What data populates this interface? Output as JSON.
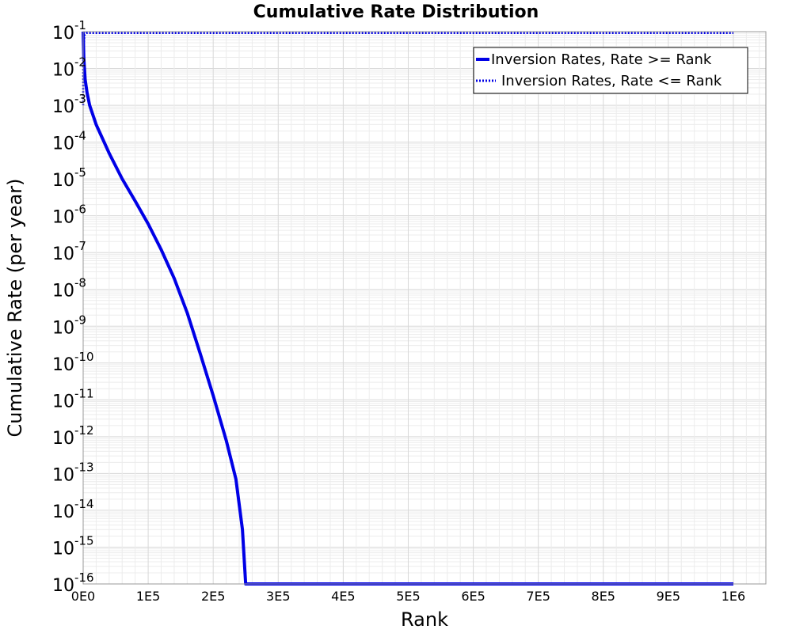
{
  "chart_data": {
    "type": "line",
    "title": "Cumulative Rate Distribution",
    "xlabel": "Rank",
    "ylabel": "Cumulative Rate (per year)",
    "x_scale": "linear",
    "y_scale": "log",
    "xlim": [
      0,
      1050000
    ],
    "ylim": [
      1e-16,
      0.1
    ],
    "grid": true,
    "legend_position": "top-right",
    "x_ticks": [
      {
        "value": 0,
        "label": "0E0"
      },
      {
        "value": 100000,
        "label": "1E5"
      },
      {
        "value": 200000,
        "label": "2E5"
      },
      {
        "value": 300000,
        "label": "3E5"
      },
      {
        "value": 400000,
        "label": "4E5"
      },
      {
        "value": 500000,
        "label": "5E5"
      },
      {
        "value": 600000,
        "label": "6E5"
      },
      {
        "value": 700000,
        "label": "7E5"
      },
      {
        "value": 800000,
        "label": "8E5"
      },
      {
        "value": 900000,
        "label": "9E5"
      },
      {
        "value": 1000000,
        "label": "1E6"
      }
    ],
    "y_ticks": [
      {
        "value": 0.1,
        "base": "10",
        "exp": "-1"
      },
      {
        "value": 0.01,
        "base": "10",
        "exp": "-2"
      },
      {
        "value": 0.001,
        "base": "10",
        "exp": "-3"
      },
      {
        "value": 0.0001,
        "base": "10",
        "exp": "-4"
      },
      {
        "value": 1e-05,
        "base": "10",
        "exp": "-5"
      },
      {
        "value": 1e-06,
        "base": "10",
        "exp": "-6"
      },
      {
        "value": 1e-07,
        "base": "10",
        "exp": "-7"
      },
      {
        "value": 1e-08,
        "base": "10",
        "exp": "-8"
      },
      {
        "value": 1e-09,
        "base": "10",
        "exp": "-9"
      },
      {
        "value": 1e-10,
        "base": "10",
        "exp": "-10"
      },
      {
        "value": 1e-11,
        "base": "10",
        "exp": "-11"
      },
      {
        "value": 1e-12,
        "base": "10",
        "exp": "-12"
      },
      {
        "value": 1e-13,
        "base": "10",
        "exp": "-13"
      },
      {
        "value": 1e-14,
        "base": "10",
        "exp": "-14"
      },
      {
        "value": 1e-15,
        "base": "10",
        "exp": "-15"
      },
      {
        "value": 1e-16,
        "base": "10",
        "exp": "-16"
      }
    ],
    "series": [
      {
        "name": "Inversion Rates, Rate >= Rank",
        "color": "#0000e6",
        "style": "solid",
        "x": [
          0,
          1000,
          3000,
          6000,
          10000,
          20000,
          40000,
          60000,
          80000,
          100000,
          120000,
          140000,
          160000,
          180000,
          200000,
          220000,
          235000,
          245000,
          250000,
          300000,
          400000,
          500000,
          600000,
          700000,
          800000,
          900000,
          1000000
        ],
        "y": [
          0.1,
          0.02,
          0.005,
          0.0022,
          0.001,
          0.0003,
          5e-05,
          1e-05,
          2.5e-06,
          6e-07,
          1.2e-07,
          2e-08,
          2.3e-09,
          1.8e-10,
          1.3e-11,
          8e-13,
          7e-14,
          3e-15,
          1e-16,
          1e-16,
          1e-16,
          1e-16,
          1e-16,
          1e-16,
          1e-16,
          1e-16,
          1e-16
        ]
      },
      {
        "name": "Inversion Rates, Rate <= Rank",
        "color": "#0000e6",
        "style": "dotted",
        "x": [
          0,
          0,
          2000,
          5000,
          1000000
        ],
        "y": [
          0.001,
          0.02,
          0.08,
          0.092,
          0.092
        ]
      }
    ]
  }
}
